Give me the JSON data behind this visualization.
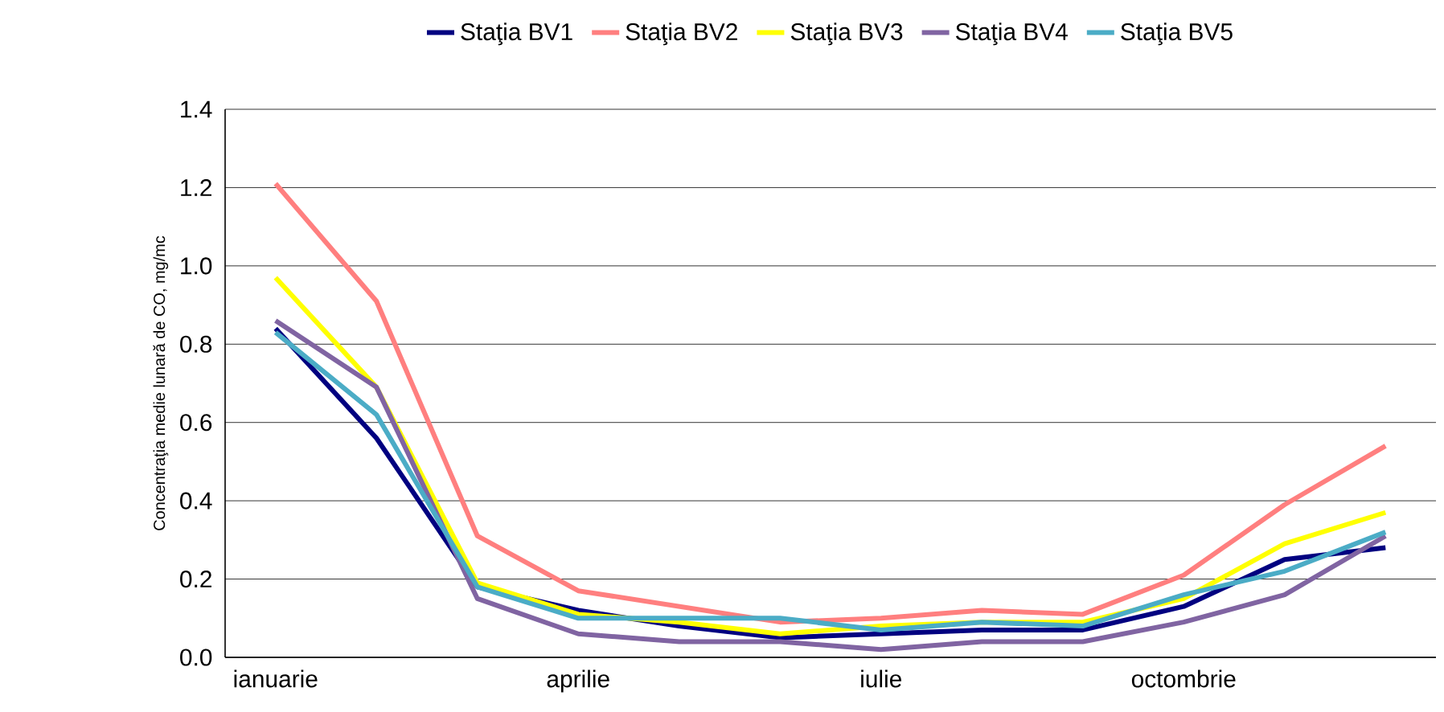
{
  "chart_data": {
    "type": "line",
    "ylabel": "Concentraţia medie lunară de CO, mg/mc",
    "categories": [
      "ianuarie",
      null,
      null,
      "aprilie",
      null,
      null,
      "iulie",
      null,
      null,
      "octombrie",
      null,
      null
    ],
    "series": [
      {
        "name": "Staţia BV1",
        "color": "#000080",
        "values": [
          0.84,
          0.56,
          0.18,
          0.12,
          0.08,
          0.05,
          0.06,
          0.07,
          0.07,
          0.13,
          0.25,
          0.28
        ]
      },
      {
        "name": "Staţia BV2",
        "color": "#ff7f7f",
        "values": [
          1.21,
          0.91,
          0.31,
          0.17,
          0.13,
          0.09,
          0.1,
          0.12,
          0.11,
          0.21,
          0.39,
          0.54
        ]
      },
      {
        "name": "Staţia BV3",
        "color": "#ffff00",
        "values": [
          0.97,
          0.69,
          0.19,
          0.11,
          0.09,
          0.06,
          0.08,
          0.09,
          0.09,
          0.15,
          0.29,
          0.37
        ]
      },
      {
        "name": "Staţia BV4",
        "color": "#8064a2",
        "values": [
          0.86,
          0.69,
          0.15,
          0.06,
          0.04,
          0.04,
          0.02,
          0.04,
          0.04,
          0.09,
          0.16,
          0.31
        ]
      },
      {
        "name": "Staţia BV5",
        "color": "#4bacc6",
        "values": [
          0.83,
          0.62,
          0.18,
          0.1,
          0.1,
          0.1,
          0.07,
          0.09,
          0.08,
          0.16,
          0.22,
          0.32
        ]
      }
    ],
    "ylim": [
      0,
      1.4
    ],
    "yticks": [
      {
        "value": 0,
        "label": "0.0"
      },
      {
        "value": 0.2,
        "label": "0.2"
      },
      {
        "value": 0.4,
        "label": "0.4"
      },
      {
        "value": 0.6,
        "label": "0.6"
      },
      {
        "value": 0.8,
        "label": "0.8"
      },
      {
        "value": 1.0,
        "label": "1.0"
      },
      {
        "value": 1.2,
        "label": "1.2"
      },
      {
        "value": 1.4,
        "label": "1.4"
      }
    ],
    "grid": "y",
    "legend": "top",
    "marker": "none",
    "line_style": "solid"
  }
}
